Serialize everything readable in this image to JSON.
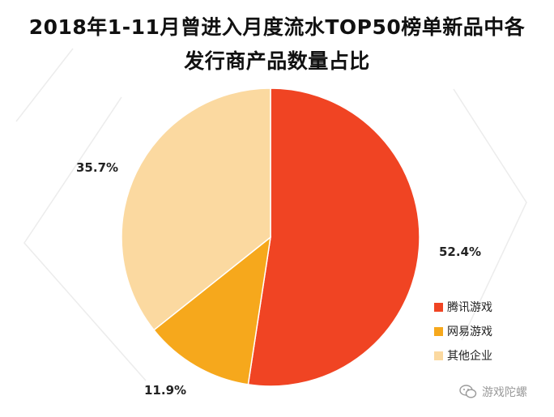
{
  "title_line1": "2018年1-11月曾进入月度流水TOP50榜单新品中各",
  "title_line2": "发行商产品数量占比",
  "chart_data": {
    "type": "pie",
    "title": "2018年1-11月曾进入月度流水TOP50榜单新品中各发行商产品数量占比",
    "slices": [
      {
        "label": "腾讯游戏",
        "value": 52.4,
        "display": "52.4%",
        "color": "#f04423"
      },
      {
        "label": "网易游戏",
        "value": 11.9,
        "display": "11.9%",
        "color": "#f6a81c"
      },
      {
        "label": "其他企业",
        "value": 35.7,
        "display": "35.7%",
        "color": "#fbd9a0"
      }
    ],
    "legend_position": "right-bottom",
    "start_angle": "12 o'clock",
    "direction": "clockwise"
  },
  "watermark": {
    "icon": "wechat-icon",
    "text": "游戏陀螺"
  }
}
